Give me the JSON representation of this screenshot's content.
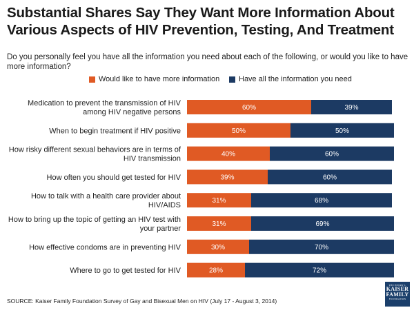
{
  "chart_data": {
    "type": "bar",
    "orientation": "horizontal",
    "stacked": true,
    "title": "Substantial Shares Say They Want More Information About Various Aspects of HIV Prevention, Testing, And Treatment",
    "subtitle": "Do you personally feel you have all the information you need about each of the following, or would you like to have more information?",
    "categories": [
      [
        "Medication to prevent the transmission of HIV",
        "among HIV negative persons"
      ],
      [
        "When to begin treatment if HIV positive"
      ],
      [
        "How risky different sexual behaviors are in terms of",
        "HIV transmission"
      ],
      [
        "How often you should get tested for HIV"
      ],
      [
        "How to talk with a health care provider about",
        "HIV/AIDS"
      ],
      [
        "How to bring up the topic of getting an HIV test with",
        "your partner"
      ],
      [
        "How effective condoms are in preventing HIV"
      ],
      [
        "Where to go to get tested for HIV"
      ]
    ],
    "series": [
      {
        "name": "Would like to have more information",
        "color": "#e05a24",
        "values": [
          60,
          50,
          40,
          39,
          31,
          31,
          30,
          28
        ]
      },
      {
        "name": "Have all the information you need",
        "color": "#1c3a63",
        "values": [
          39,
          50,
          60,
          60,
          68,
          69,
          70,
          72
        ]
      }
    ],
    "value_suffix": "%",
    "xlim": [
      0,
      100
    ],
    "legend_position": "top"
  },
  "source": "SOURCE: Kaiser Family Foundation Survey of Gay and Bisexual Men on HIV (July 17 - August 3, 2014)",
  "logo": {
    "line1": "THE HENRY J.",
    "line2": "KAISER",
    "line3": "FAMILY",
    "line4": "FOUNDATION"
  }
}
